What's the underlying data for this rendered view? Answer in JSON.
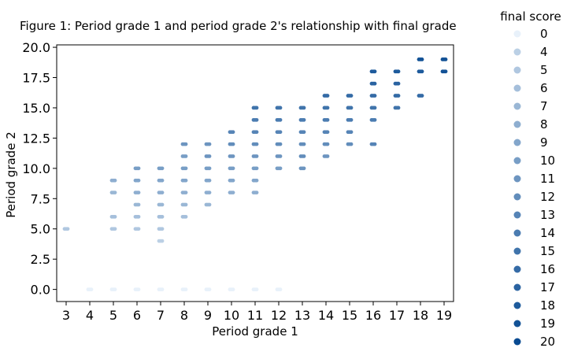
{
  "chart_data": {
    "type": "scatter",
    "title": "Figure 1: Period grade 1 and period grade 2's relationship with final grade",
    "xlabel": "Period grade 1",
    "ylabel": "Period grade 2",
    "xlim": [
      2.6,
      19.4
    ],
    "ylim": [
      -1.0,
      20.2
    ],
    "x_ticks": [
      3,
      4,
      5,
      6,
      7,
      8,
      9,
      10,
      11,
      12,
      13,
      14,
      15,
      16,
      17,
      18,
      19
    ],
    "y_ticks": [
      "0.0",
      "2.5",
      "5.0",
      "7.5",
      "10.0",
      "12.5",
      "15.0",
      "17.5",
      "20.0"
    ],
    "grid": false,
    "legend": {
      "title": "final score",
      "placement": "outside-right",
      "entries": [
        "0",
        "4",
        "5",
        "6",
        "7",
        "8",
        "9",
        "10",
        "11",
        "12",
        "13",
        "14",
        "15",
        "16",
        "17",
        "18",
        "19",
        "20"
      ]
    },
    "color_scale": {
      "low": "#e8f1fa",
      "high": "#084a91"
    },
    "points": [
      [
        3,
        5,
        5
      ],
      [
        4,
        0,
        0
      ],
      [
        5,
        0,
        0
      ],
      [
        6,
        0,
        0
      ],
      [
        7,
        0,
        0
      ],
      [
        8,
        0,
        0
      ],
      [
        9,
        0,
        0
      ],
      [
        10,
        0,
        0
      ],
      [
        11,
        0,
        0
      ],
      [
        12,
        0,
        0
      ],
      [
        5,
        5,
        5
      ],
      [
        5,
        6,
        6
      ],
      [
        5,
        8,
        7
      ],
      [
        5,
        9,
        8
      ],
      [
        6,
        5,
        5
      ],
      [
        6,
        6,
        6
      ],
      [
        6,
        7,
        7
      ],
      [
        6,
        8,
        8
      ],
      [
        6,
        9,
        9
      ],
      [
        6,
        10,
        10
      ],
      [
        7,
        4,
        4
      ],
      [
        7,
        5,
        5
      ],
      [
        7,
        6,
        6
      ],
      [
        7,
        7,
        7
      ],
      [
        7,
        8,
        8
      ],
      [
        7,
        9,
        9
      ],
      [
        7,
        10,
        10
      ],
      [
        8,
        6,
        6
      ],
      [
        8,
        7,
        7
      ],
      [
        8,
        8,
        8
      ],
      [
        8,
        9,
        9
      ],
      [
        8,
        10,
        10
      ],
      [
        8,
        11,
        10
      ],
      [
        8,
        12,
        11
      ],
      [
        9,
        7,
        7
      ],
      [
        9,
        8,
        8
      ],
      [
        9,
        9,
        9
      ],
      [
        9,
        10,
        10
      ],
      [
        9,
        11,
        11
      ],
      [
        9,
        12,
        11
      ],
      [
        10,
        8,
        8
      ],
      [
        10,
        9,
        9
      ],
      [
        10,
        10,
        10
      ],
      [
        10,
        11,
        11
      ],
      [
        10,
        12,
        12
      ],
      [
        10,
        13,
        13
      ],
      [
        11,
        8,
        8
      ],
      [
        11,
        9,
        9
      ],
      [
        11,
        10,
        10
      ],
      [
        11,
        11,
        11
      ],
      [
        11,
        12,
        12
      ],
      [
        11,
        13,
        13
      ],
      [
        11,
        14,
        14
      ],
      [
        11,
        15,
        15
      ],
      [
        12,
        10,
        10
      ],
      [
        12,
        11,
        11
      ],
      [
        12,
        12,
        12
      ],
      [
        12,
        13,
        13
      ],
      [
        12,
        14,
        14
      ],
      [
        12,
        15,
        15
      ],
      [
        13,
        10,
        11
      ],
      [
        13,
        11,
        12
      ],
      [
        13,
        12,
        12
      ],
      [
        13,
        13,
        13
      ],
      [
        13,
        14,
        14
      ],
      [
        13,
        15,
        15
      ],
      [
        14,
        11,
        11
      ],
      [
        14,
        12,
        12
      ],
      [
        14,
        13,
        13
      ],
      [
        14,
        14,
        14
      ],
      [
        14,
        15,
        15
      ],
      [
        14,
        16,
        16
      ],
      [
        15,
        12,
        12
      ],
      [
        15,
        13,
        13
      ],
      [
        15,
        14,
        14
      ],
      [
        15,
        15,
        15
      ],
      [
        15,
        16,
        16
      ],
      [
        16,
        12,
        13
      ],
      [
        16,
        14,
        14
      ],
      [
        16,
        15,
        15
      ],
      [
        16,
        16,
        16
      ],
      [
        16,
        17,
        17
      ],
      [
        16,
        18,
        18
      ],
      [
        17,
        15,
        15
      ],
      [
        17,
        16,
        16
      ],
      [
        17,
        17,
        17
      ],
      [
        17,
        18,
        18
      ],
      [
        18,
        16,
        16
      ],
      [
        18,
        18,
        18
      ],
      [
        18,
        19,
        19
      ],
      [
        19,
        18,
        19
      ],
      [
        19,
        19,
        19
      ]
    ]
  }
}
